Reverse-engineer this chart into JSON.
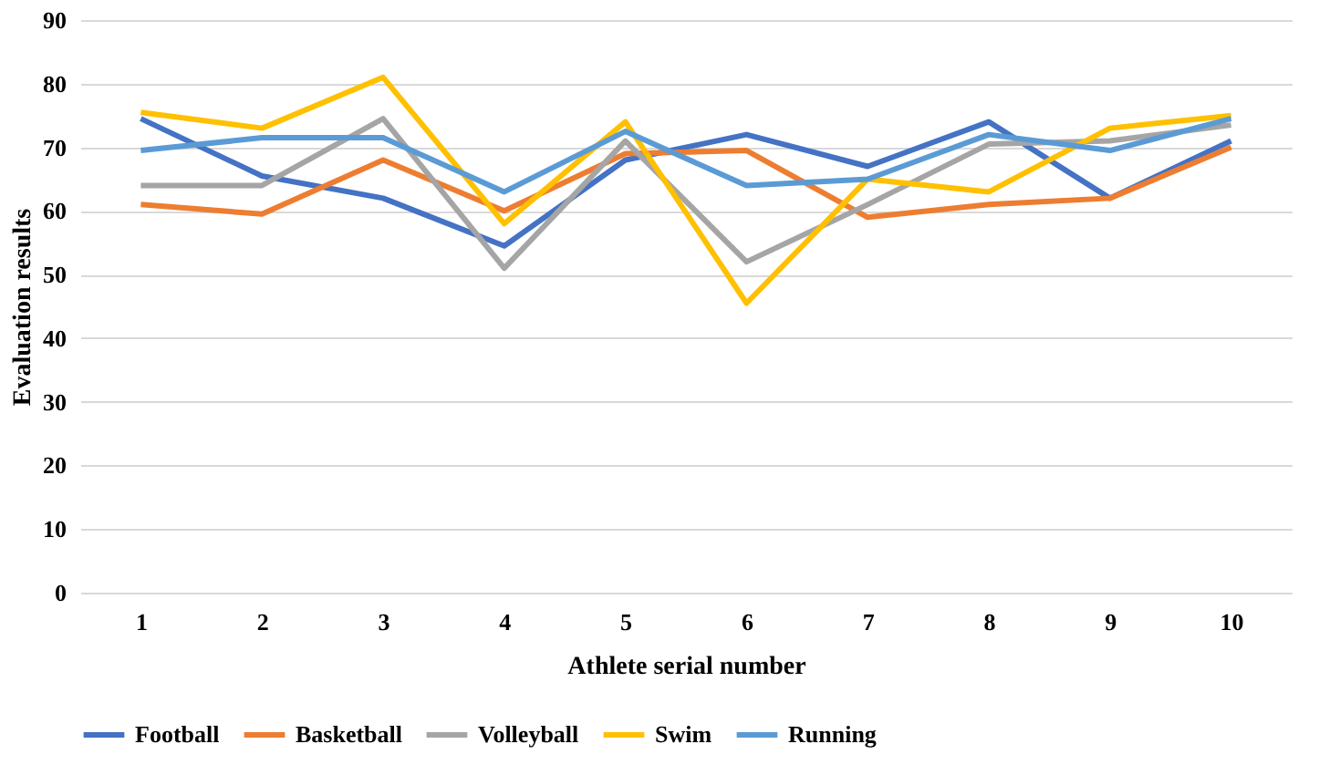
{
  "chart_data": {
    "type": "line",
    "xlabel": "Athlete serial number",
    "ylabel": "Evaluation results",
    "categories": [
      "1",
      "2",
      "3",
      "4",
      "5",
      "6",
      "7",
      "8",
      "9",
      "10"
    ],
    "series": [
      {
        "name": "Football",
        "color": "#4472c4",
        "values": [
          74.5,
          65.5,
          62,
          54.5,
          68,
          72,
          67,
          74,
          62,
          71
        ]
      },
      {
        "name": "Basketball",
        "color": "#ed7d31",
        "values": [
          61,
          59.5,
          68,
          60,
          69,
          69.5,
          59,
          61,
          62,
          70
        ]
      },
      {
        "name": "Volleyball",
        "color": "#a5a5a5",
        "values": [
          64,
          64,
          74.5,
          51,
          71,
          52,
          61,
          70.5,
          71,
          73.5
        ]
      },
      {
        "name": "Swim",
        "color": "#ffc000",
        "values": [
          75.5,
          73,
          81,
          58,
          74,
          45.5,
          65,
          63,
          73,
          75
        ]
      },
      {
        "name": "Running",
        "color": "#5b9bd5",
        "values": [
          69.5,
          71.5,
          71.5,
          63,
          72.5,
          64,
          65,
          72,
          69.5,
          74.5
        ]
      }
    ],
    "ylim": [
      0,
      90
    ],
    "yticks": [
      0,
      10,
      20,
      30,
      40,
      50,
      60,
      70,
      80,
      90
    ],
    "grid": "y",
    "legend": "bottom",
    "marker": "none",
    "line_style": "solid"
  }
}
